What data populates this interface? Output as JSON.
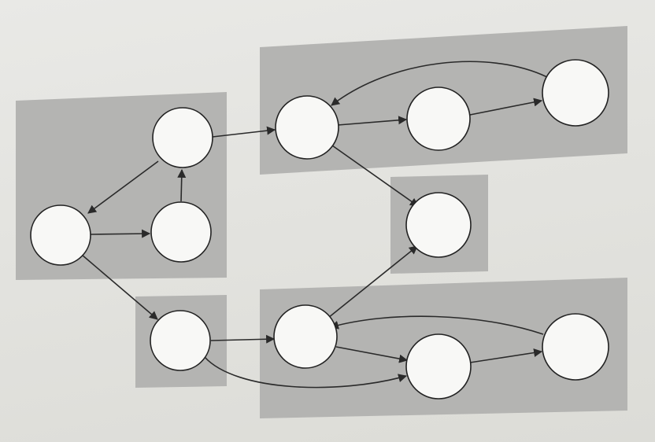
{
  "diagram": {
    "type": "directed-graph",
    "colors": {
      "region": "#b4b4b2",
      "node_fill": "#f8f8f6",
      "node_stroke": "#222222",
      "edge": "#2a2a2a"
    },
    "components": [
      {
        "id": "scc-1",
        "nodes": [
          "n1",
          "n2",
          "n3"
        ]
      },
      {
        "id": "scc-2",
        "nodes": [
          "n4",
          "n5",
          "n6"
        ]
      },
      {
        "id": "scc-3",
        "nodes": [
          "n7"
        ]
      },
      {
        "id": "scc-4",
        "nodes": [
          "n8"
        ]
      },
      {
        "id": "scc-5",
        "nodes": [
          "n9",
          "n10",
          "n11"
        ]
      }
    ],
    "nodes": [
      {
        "id": "n1",
        "label": ""
      },
      {
        "id": "n2",
        "label": ""
      },
      {
        "id": "n3",
        "label": ""
      },
      {
        "id": "n4",
        "label": ""
      },
      {
        "id": "n5",
        "label": ""
      },
      {
        "id": "n6",
        "label": ""
      },
      {
        "id": "n7",
        "label": ""
      },
      {
        "id": "n8",
        "label": ""
      },
      {
        "id": "n9",
        "label": ""
      },
      {
        "id": "n10",
        "label": ""
      },
      {
        "id": "n11",
        "label": ""
      }
    ],
    "edges": [
      {
        "from": "n2",
        "to": "n1"
      },
      {
        "from": "n1",
        "to": "n3"
      },
      {
        "from": "n3",
        "to": "n2"
      },
      {
        "from": "n2",
        "to": "n4"
      },
      {
        "from": "n1",
        "to": "n8"
      },
      {
        "from": "n4",
        "to": "n5"
      },
      {
        "from": "n5",
        "to": "n6"
      },
      {
        "from": "n6",
        "to": "n4"
      },
      {
        "from": "n4",
        "to": "n7"
      },
      {
        "from": "n8",
        "to": "n9"
      },
      {
        "from": "n8",
        "to": "n10"
      },
      {
        "from": "n9",
        "to": "n7"
      },
      {
        "from": "n9",
        "to": "n10"
      },
      {
        "from": "n10",
        "to": "n11"
      },
      {
        "from": "n11",
        "to": "n9"
      }
    ]
  }
}
